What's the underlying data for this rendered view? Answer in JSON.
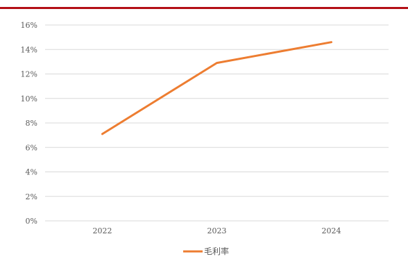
{
  "colors": {
    "top_rule": "#b30f16",
    "series_line": "#ed7d31",
    "grid": "#d9d9d9",
    "tick_text": "#595959"
  },
  "chart_data": {
    "type": "line",
    "title": "",
    "xlabel": "",
    "ylabel": "",
    "categories": [
      "2022",
      "2023",
      "2024"
    ],
    "series": [
      {
        "name": "毛利率",
        "values": [
          0.071,
          0.129,
          0.146
        ]
      }
    ],
    "ylim": [
      0,
      0.16
    ],
    "yticks": [
      0,
      0.02,
      0.04,
      0.06,
      0.08,
      0.1,
      0.12,
      0.14,
      0.16
    ],
    "ytick_labels": [
      "0%",
      "2%",
      "4%",
      "6%",
      "8%",
      "10%",
      "12%",
      "14%",
      "16%"
    ],
    "grid": true,
    "legend": "bottom"
  }
}
